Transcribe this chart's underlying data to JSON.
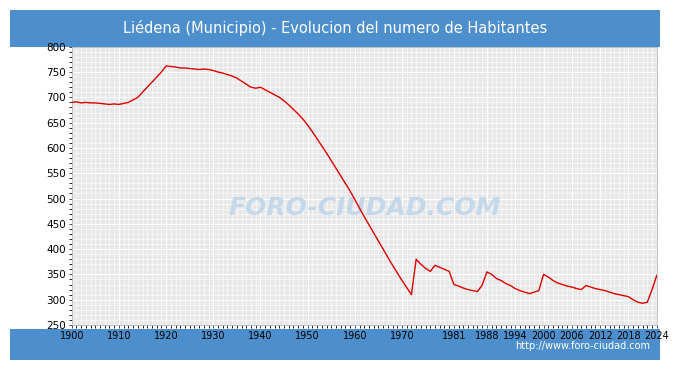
{
  "title": "Liédena (Municipio) - Evolucion del numero de Habitantes",
  "title_bgcolor": "#4d8fcc",
  "title_color": "white",
  "url": "http://www.foro-ciudad.com",
  "watermark": "FORO-CIUDAD.COM",
  "watermark_color": "#c5d8ea",
  "line_color": "#dd0000",
  "bg_color": "#ffffff",
  "plot_bg": "#e8e8e8",
  "grid_color": "#ffffff",
  "ylim": [
    250,
    800
  ],
  "yticks": [
    250,
    300,
    350,
    400,
    450,
    500,
    550,
    600,
    650,
    700,
    750,
    800
  ],
  "xticks": [
    1900,
    1910,
    1920,
    1930,
    1940,
    1950,
    1960,
    1970,
    1981,
    1988,
    1994,
    2000,
    2006,
    2012,
    2018,
    2024
  ],
  "data": [
    [
      1900,
      690
    ],
    [
      1901,
      691
    ],
    [
      1902,
      689
    ],
    [
      1903,
      690
    ],
    [
      1904,
      689
    ],
    [
      1905,
      689
    ],
    [
      1906,
      688
    ],
    [
      1907,
      687
    ],
    [
      1908,
      686
    ],
    [
      1909,
      687
    ],
    [
      1910,
      686
    ],
    [
      1911,
      688
    ],
    [
      1912,
      690
    ],
    [
      1913,
      695
    ],
    [
      1914,
      700
    ],
    [
      1915,
      710
    ],
    [
      1916,
      720
    ],
    [
      1917,
      730
    ],
    [
      1918,
      740
    ],
    [
      1919,
      750
    ],
    [
      1920,
      762
    ],
    [
      1921,
      761
    ],
    [
      1922,
      760
    ],
    [
      1923,
      758
    ],
    [
      1924,
      758
    ],
    [
      1925,
      757
    ],
    [
      1926,
      756
    ],
    [
      1927,
      755
    ],
    [
      1928,
      756
    ],
    [
      1929,
      755
    ],
    [
      1930,
      753
    ],
    [
      1931,
      750
    ],
    [
      1932,
      748
    ],
    [
      1933,
      745
    ],
    [
      1934,
      742
    ],
    [
      1935,
      738
    ],
    [
      1936,
      732
    ],
    [
      1937,
      726
    ],
    [
      1938,
      720
    ],
    [
      1939,
      718
    ],
    [
      1940,
      720
    ],
    [
      1941,
      715
    ],
    [
      1942,
      710
    ],
    [
      1943,
      705
    ],
    [
      1944,
      700
    ],
    [
      1945,
      693
    ],
    [
      1946,
      685
    ],
    [
      1947,
      676
    ],
    [
      1948,
      667
    ],
    [
      1949,
      657
    ],
    [
      1950,
      645
    ],
    [
      1951,
      632
    ],
    [
      1952,
      618
    ],
    [
      1953,
      604
    ],
    [
      1954,
      590
    ],
    [
      1955,
      575
    ],
    [
      1956,
      560
    ],
    [
      1957,
      545
    ],
    [
      1958,
      530
    ],
    [
      1959,
      515
    ],
    [
      1960,
      498
    ],
    [
      1961,
      481
    ],
    [
      1962,
      464
    ],
    [
      1963,
      448
    ],
    [
      1964,
      432
    ],
    [
      1965,
      416
    ],
    [
      1966,
      400
    ],
    [
      1967,
      384
    ],
    [
      1968,
      368
    ],
    [
      1969,
      353
    ],
    [
      1970,
      338
    ],
    [
      1971,
      324
    ],
    [
      1972,
      310
    ],
    [
      1973,
      380
    ],
    [
      1974,
      370
    ],
    [
      1975,
      362
    ],
    [
      1976,
      356
    ],
    [
      1977,
      368
    ],
    [
      1978,
      364
    ],
    [
      1979,
      360
    ],
    [
      1980,
      356
    ],
    [
      1981,
      330
    ],
    [
      1982,
      327
    ],
    [
      1983,
      323
    ],
    [
      1984,
      320
    ],
    [
      1985,
      318
    ],
    [
      1986,
      316
    ],
    [
      1987,
      329
    ],
    [
      1988,
      355
    ],
    [
      1989,
      350
    ],
    [
      1990,
      342
    ],
    [
      1991,
      338
    ],
    [
      1992,
      332
    ],
    [
      1993,
      328
    ],
    [
      1994,
      322
    ],
    [
      1995,
      318
    ],
    [
      1996,
      315
    ],
    [
      1997,
      312
    ],
    [
      1998,
      315
    ],
    [
      1999,
      318
    ],
    [
      2000,
      350
    ],
    [
      2001,
      345
    ],
    [
      2002,
      338
    ],
    [
      2003,
      333
    ],
    [
      2004,
      330
    ],
    [
      2005,
      327
    ],
    [
      2006,
      325
    ],
    [
      2007,
      322
    ],
    [
      2008,
      320
    ],
    [
      2009,
      328
    ],
    [
      2010,
      325
    ],
    [
      2011,
      322
    ],
    [
      2012,
      320
    ],
    [
      2013,
      318
    ],
    [
      2014,
      315
    ],
    [
      2015,
      312
    ],
    [
      2016,
      310
    ],
    [
      2017,
      308
    ],
    [
      2018,
      306
    ],
    [
      2019,
      300
    ],
    [
      2020,
      295
    ],
    [
      2021,
      293
    ],
    [
      2022,
      295
    ],
    [
      2023,
      320
    ],
    [
      2024,
      348
    ]
  ]
}
